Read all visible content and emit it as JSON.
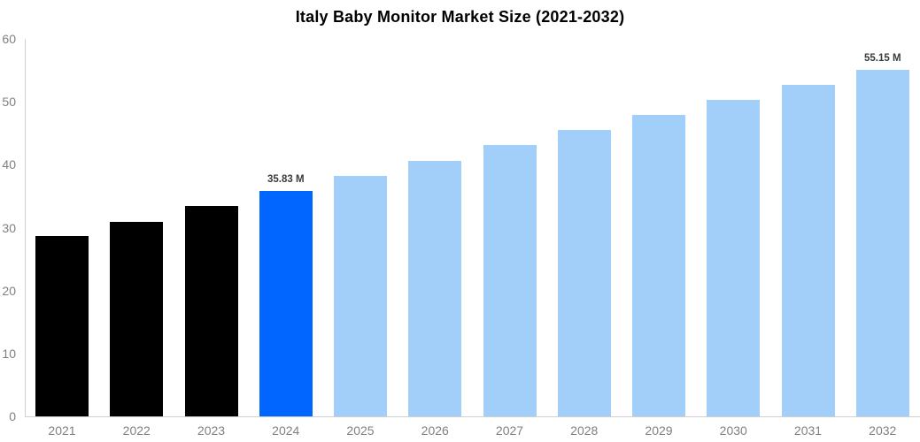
{
  "chart_data": {
    "type": "bar",
    "title": "Italy Baby Monitor Market Size (2021-2032)",
    "categories": [
      "2021",
      "2022",
      "2023",
      "2024",
      "2025",
      "2026",
      "2027",
      "2028",
      "2029",
      "2030",
      "2031",
      "2032"
    ],
    "values": [
      28.6,
      30.9,
      33.4,
      35.83,
      38.25,
      40.66,
      43.08,
      45.49,
      47.91,
      50.32,
      52.74,
      55.15
    ],
    "unit": "M",
    "data_labels": [
      null,
      null,
      null,
      "35.83 M",
      null,
      null,
      null,
      null,
      null,
      null,
      null,
      "55.15 M"
    ],
    "bar_colors": [
      "#000000",
      "#000000",
      "#000000",
      "#0066ff",
      "#a2cffa",
      "#a2cffa",
      "#a2cffa",
      "#a2cffa",
      "#a2cffa",
      "#a2cffa",
      "#a2cffa",
      "#a2cffa"
    ],
    "xlabel": "",
    "ylabel": "",
    "ylim": [
      0,
      60
    ],
    "yticks": [
      0,
      10,
      20,
      30,
      40,
      50,
      60
    ],
    "grid": false,
    "legend": "none",
    "colors": {
      "historical_bar": "#000000",
      "highlight_bar": "#0066ff",
      "forecast_bar": "#a2cffa",
      "axis_line": "#cfcfcf",
      "tick_label": "#808080",
      "data_label": "#3b3b3b",
      "title": "#000000",
      "background": "#ffffff"
    }
  }
}
